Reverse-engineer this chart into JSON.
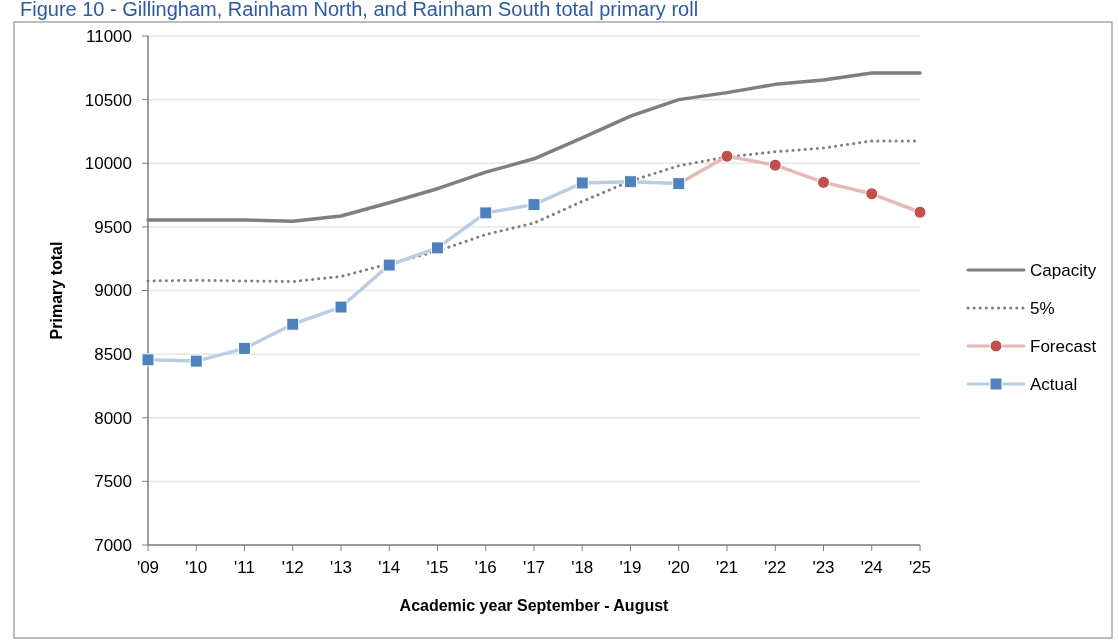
{
  "chart_data": {
    "type": "line",
    "title": "Figure 10 - Gillingham, Rainham North, and Rainham South total primary roll",
    "xlabel": "Academic year September - August",
    "ylabel": "Primary total",
    "categories": [
      "'09",
      "'10",
      "'11",
      "'12",
      "'13",
      "'14",
      "'15",
      "'16",
      "'17",
      "'18",
      "'19",
      "'20",
      "'21",
      "'22",
      "'23",
      "'24",
      "'25"
    ],
    "series": [
      {
        "name": "Capacity",
        "color": "#7f7f7f",
        "line_style": "solid",
        "marker": "none",
        "values": [
          9555,
          9555,
          9555,
          9545,
          9585,
          9690,
          9800,
          9930,
          10035,
          10200,
          10370,
          10500,
          10555,
          10620,
          10655,
          10710,
          10710
        ]
      },
      {
        "name": "5%",
        "color": "#7f7f7f",
        "line_style": "dotted",
        "marker": "none",
        "values": [
          9075,
          9080,
          9075,
          9070,
          9110,
          9210,
          9310,
          9440,
          9530,
          9700,
          9860,
          9980,
          10050,
          10090,
          10120,
          10175,
          10175
        ]
      },
      {
        "name": "Forecast",
        "color": "#c0504d",
        "line_style": "solid",
        "marker": "circle",
        "values": [
          null,
          null,
          null,
          null,
          null,
          null,
          null,
          null,
          null,
          null,
          null,
          9840,
          10055,
          9985,
          9850,
          9760,
          9615
        ]
      },
      {
        "name": "Actual",
        "color": "#4f81bd",
        "line_style": "solid",
        "marker": "square",
        "values": [
          8455,
          8445,
          8545,
          8735,
          8870,
          9200,
          9335,
          9610,
          9675,
          9845,
          9855,
          9840,
          null,
          null,
          null,
          null,
          null
        ]
      }
    ],
    "ylim": [
      7000,
      11000
    ],
    "yticks": [
      7000,
      7500,
      8000,
      8500,
      9000,
      9500,
      10000,
      10500,
      11000
    ],
    "grid": "y",
    "legend": "right"
  }
}
